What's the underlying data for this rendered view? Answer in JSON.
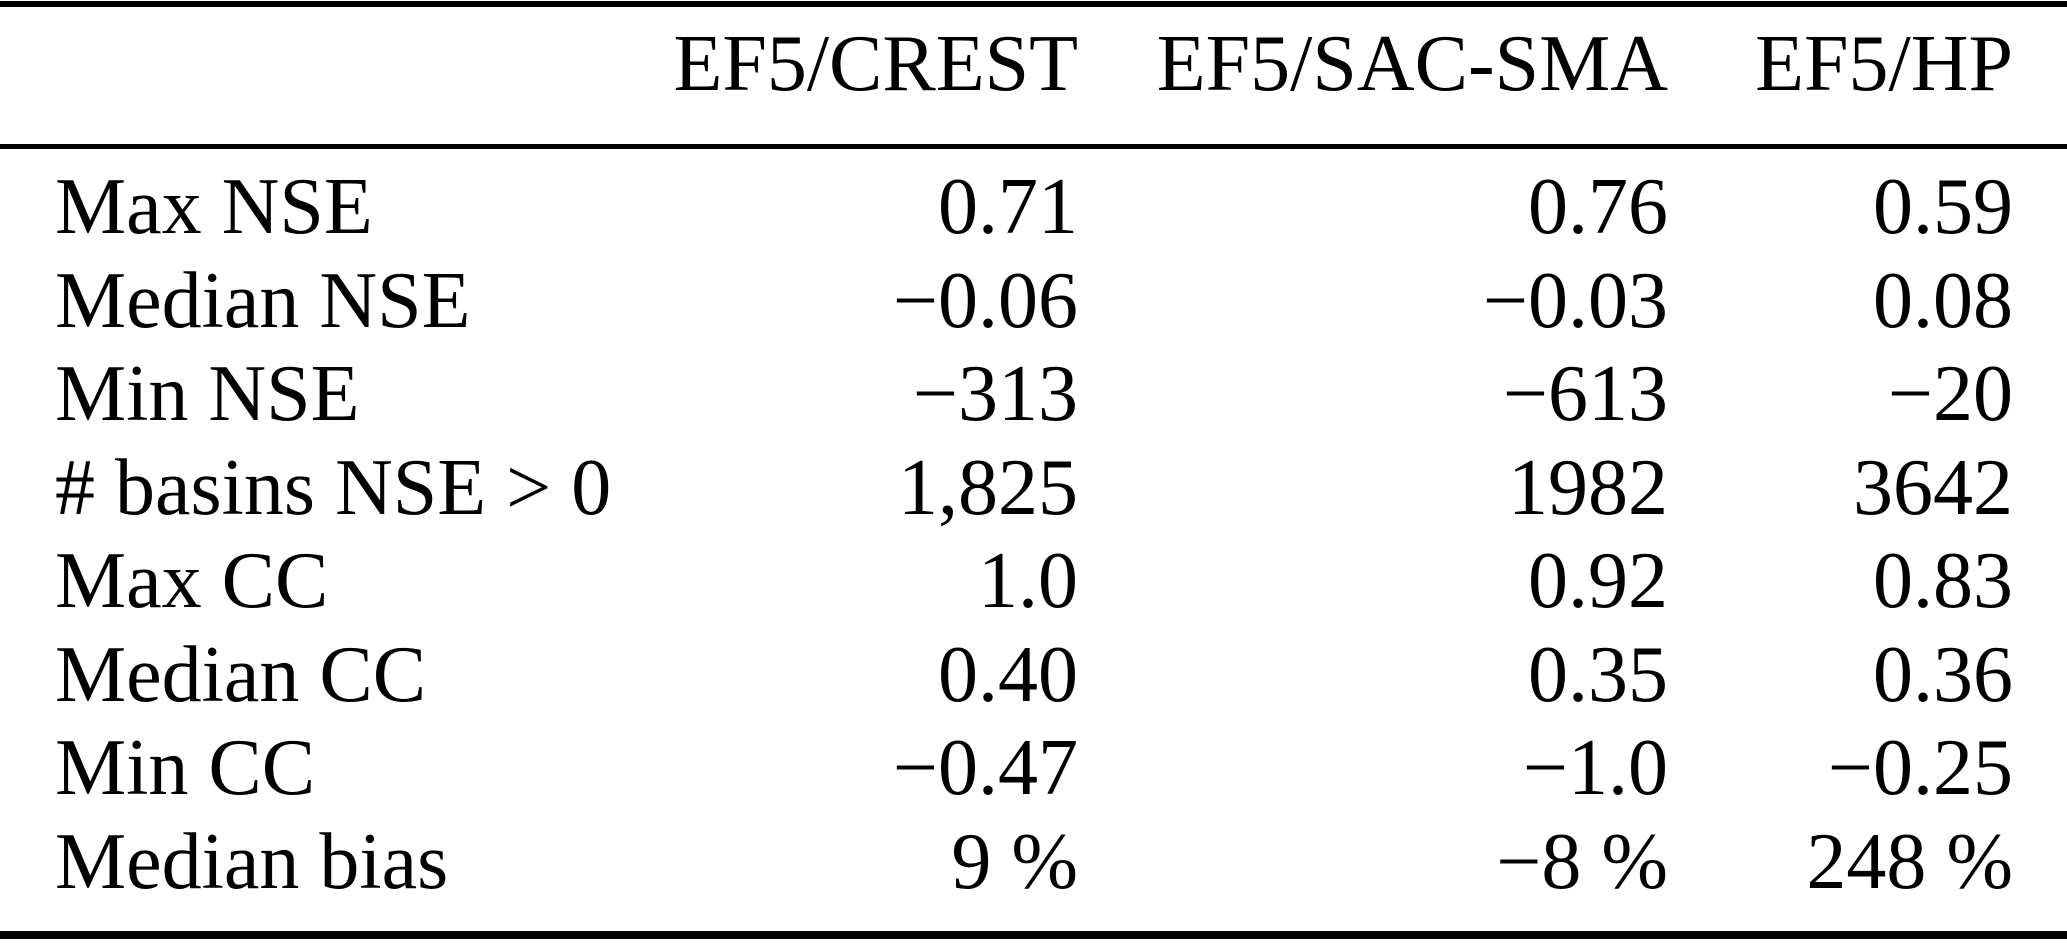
{
  "table": {
    "columns": [
      "EF5/CREST",
      "EF5/SAC-SMA",
      "EF5/HP"
    ],
    "rows": [
      {
        "label": "Max NSE",
        "values": [
          "0.71",
          "0.76",
          "0.59"
        ]
      },
      {
        "label": "Median NSE",
        "values": [
          "−0.06",
          "−0.03",
          "0.08"
        ]
      },
      {
        "label": "Min NSE",
        "values": [
          "−313",
          "−613",
          "−20"
        ]
      },
      {
        "label": "# basins NSE > 0",
        "values": [
          "1,825",
          "1982",
          "3642"
        ]
      },
      {
        "label": "Max CC",
        "values": [
          "1.0",
          "0.92",
          "0.83"
        ]
      },
      {
        "label": "Median CC",
        "values": [
          "0.40",
          "0.35",
          "0.36"
        ]
      },
      {
        "label": "Min CC",
        "values": [
          "−0.47",
          "−1.0",
          "−0.25"
        ]
      },
      {
        "label": "Median bias",
        "values": [
          "9 %",
          "−8 %",
          "248 %"
        ]
      }
    ]
  },
  "colors": {
    "background": "#ffffff",
    "text": "#000000",
    "rule": "#000000"
  }
}
